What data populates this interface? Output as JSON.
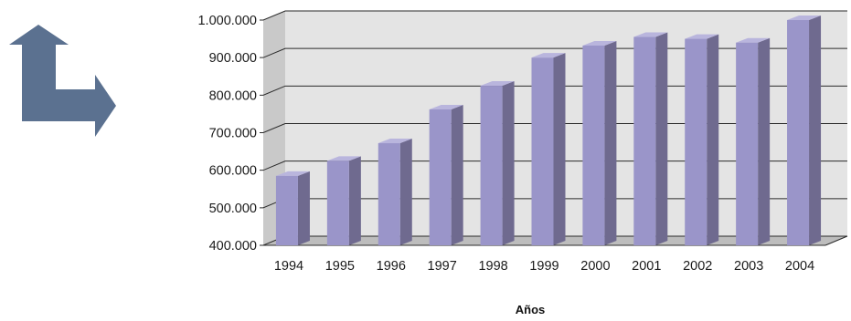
{
  "decor": {
    "icon": "turn-up-right-arrow-icon",
    "color": "#5b7190"
  },
  "colors": {
    "bar_front": "#9a95c9",
    "bar_side": "#6f6a8f",
    "bar_top": "#b9b5dd",
    "back_wall": "#e4e4e4",
    "side_wall": "#c9c9c9",
    "floor": "#bdbdbd",
    "grid": "#2a2a2a"
  },
  "chart_data": {
    "type": "bar",
    "title": "",
    "xlabel": "Años",
    "ylabel": "",
    "categories": [
      "1994",
      "1995",
      "1996",
      "1997",
      "1998",
      "1999",
      "2000",
      "2001",
      "2002",
      "2003",
      "2004"
    ],
    "values": [
      585000,
      625000,
      672000,
      762000,
      825000,
      900000,
      932000,
      955000,
      950000,
      940000,
      1000000
    ],
    "ylim": [
      400000,
      1000000
    ],
    "yticks": [
      400000,
      500000,
      600000,
      700000,
      800000,
      900000,
      1000000
    ],
    "ytick_labels": [
      "400.000",
      "500.000",
      "600.000",
      "700.000",
      "800.000",
      "900.000",
      "1.000.000"
    ],
    "grid": true,
    "legend": "none",
    "style": "3d-columns"
  }
}
